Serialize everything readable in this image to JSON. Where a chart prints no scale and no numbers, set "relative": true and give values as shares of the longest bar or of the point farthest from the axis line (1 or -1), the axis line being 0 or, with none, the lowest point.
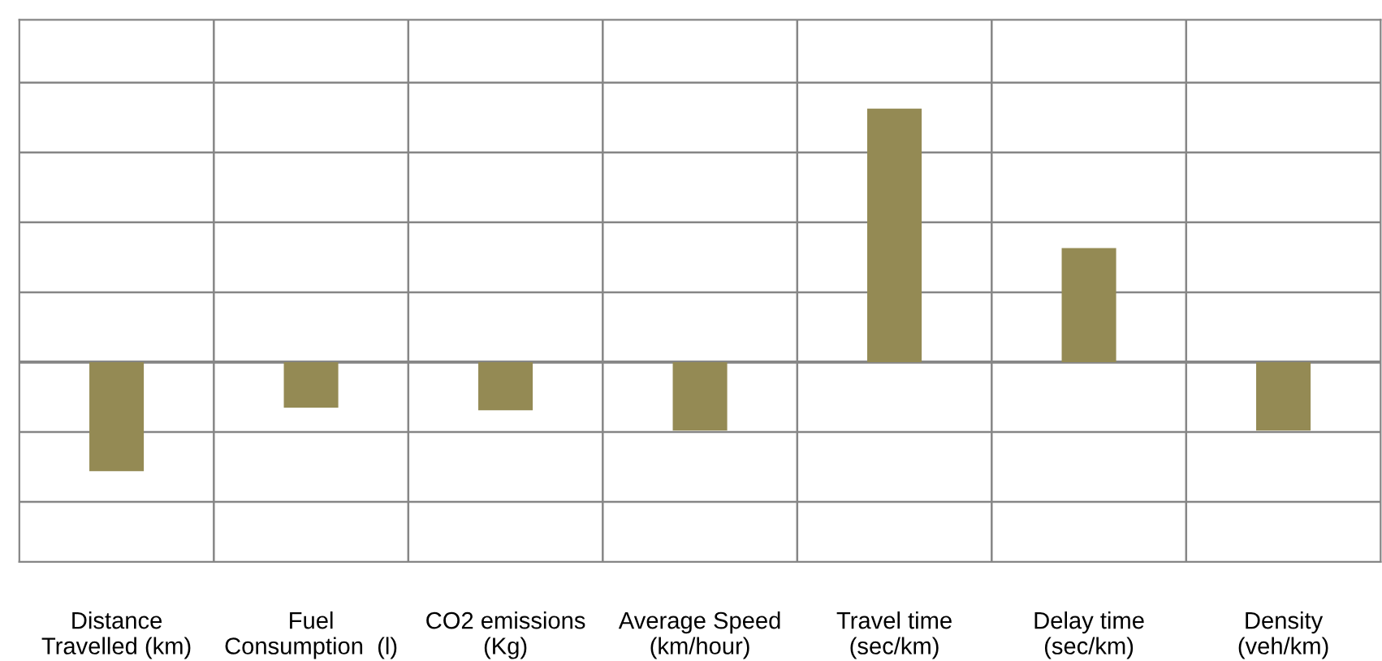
{
  "chart_data": {
    "type": "bar",
    "relative": true,
    "categories": [
      "Distance\nTravelled (km)",
      "Fuel\nConsumption  (l)",
      "CO2 emissions\n(Kg)",
      "Average Speed\n(km/hour)",
      "Travel time\n(sec/km)",
      "Delay time\n(sec/km)",
      "Density\n(veh/km)"
    ],
    "values": [
      -0.43,
      -0.18,
      -0.19,
      -0.27,
      1,
      0.45,
      -0.27
    ],
    "color": "#948a54",
    "grid": true,
    "legend": false
  }
}
